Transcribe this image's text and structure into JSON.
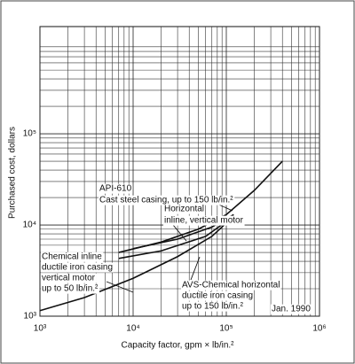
{
  "chart_data": {
    "type": "line",
    "x_label": "Capacity factor, gpm × lb/in.²",
    "y_label": "Purchased cost, dollars",
    "log_x": true,
    "log_y": true,
    "grid": true,
    "minor_grid": true,
    "xlim": [
      1000,
      1000000
    ],
    "ylim": [
      1000,
      1500000
    ],
    "xticks": [
      {
        "value": 1000,
        "label": "10³"
      },
      {
        "value": 10000,
        "label": "10⁴"
      },
      {
        "value": 100000,
        "label": "10⁵"
      },
      {
        "value": 1000000,
        "label": "10⁶"
      }
    ],
    "yticks": [
      {
        "value": 1000,
        "label": "10³"
      },
      {
        "value": 10000,
        "label": "10⁴"
      },
      {
        "value": 100000,
        "label": "10⁵"
      }
    ],
    "series": [
      {
        "color": "#111111",
        "x": [
          7000,
          20000,
          50000,
          100000,
          200000,
          400000
        ],
        "values": [
          5000,
          6500,
          9000,
          13000,
          24000,
          50000
        ]
      },
      {
        "color": "#111111",
        "x": [
          10000,
          30000,
          70000,
          120000
        ],
        "values": [
          5500,
          7000,
          9500,
          13000
        ]
      },
      {
        "color": "#111111",
        "x": [
          7000,
          20000,
          60000,
          120000
        ],
        "values": [
          4300,
          5200,
          7500,
          12500
        ]
      },
      {
        "color": "#111111",
        "x": [
          1000,
          3000,
          10000,
          30000,
          70000,
          120000
        ],
        "values": [
          1150,
          1600,
          2600,
          4500,
          7500,
          12500
        ]
      }
    ],
    "annotations": [
      "API-610",
      "Cast steel casing, up to 150 lb/in.²",
      "Horizontal",
      "inline, vertical motor",
      "Chemical inline",
      "ductile iron casing",
      "vertical motor",
      "up to 50 lb/in.²",
      "AVS-Chemical horizontal",
      "ductile iron casing",
      "up to 150 lb/in.²",
      "Jan. 1990"
    ]
  }
}
